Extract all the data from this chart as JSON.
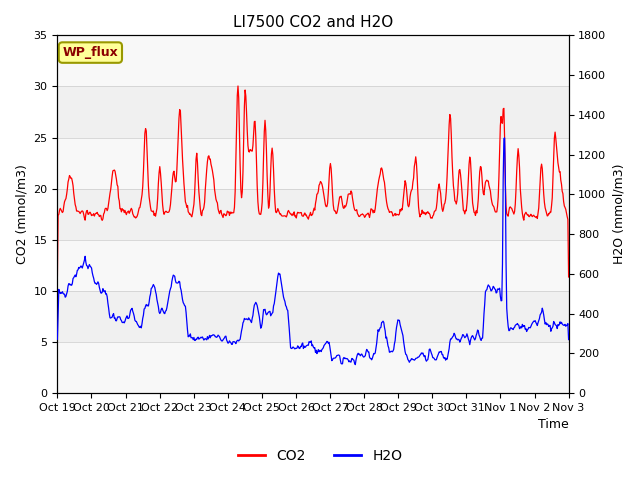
{
  "title": "LI7500 CO2 and H2O",
  "xlabel": "Time",
  "ylabel_left": "CO2 (mmol/m3)",
  "ylabel_right": "H2O (mmol/m3)",
  "co2_color": "#FF0000",
  "h2o_color": "#0000FF",
  "co2_ylim": [
    0,
    35
  ],
  "h2o_ylim": [
    0,
    1800
  ],
  "bg_color": "#ffffff",
  "plot_bg_color": "#f0f0f0",
  "band_light_color": "#e8e8e8",
  "band_dark_color": "#d8d8d8",
  "legend_label_co2": "CO2",
  "legend_label_h2o": "H2O",
  "site_label": "WP_flux",
  "x_tick_labels": [
    "Oct 19",
    "Oct 20",
    "Oct 21",
    "Oct 22",
    "Oct 23",
    "Oct 24",
    "Oct 25",
    "Oct 26",
    "Oct 27",
    "Oct 28",
    "Oct 29",
    "Oct 30",
    "Oct 31",
    "Nov 1",
    "Nov 2",
    "Nov 3"
  ],
  "n_days": 15,
  "title_fontsize": 11,
  "axis_fontsize": 9,
  "tick_fontsize": 8,
  "legend_fontsize": 10
}
